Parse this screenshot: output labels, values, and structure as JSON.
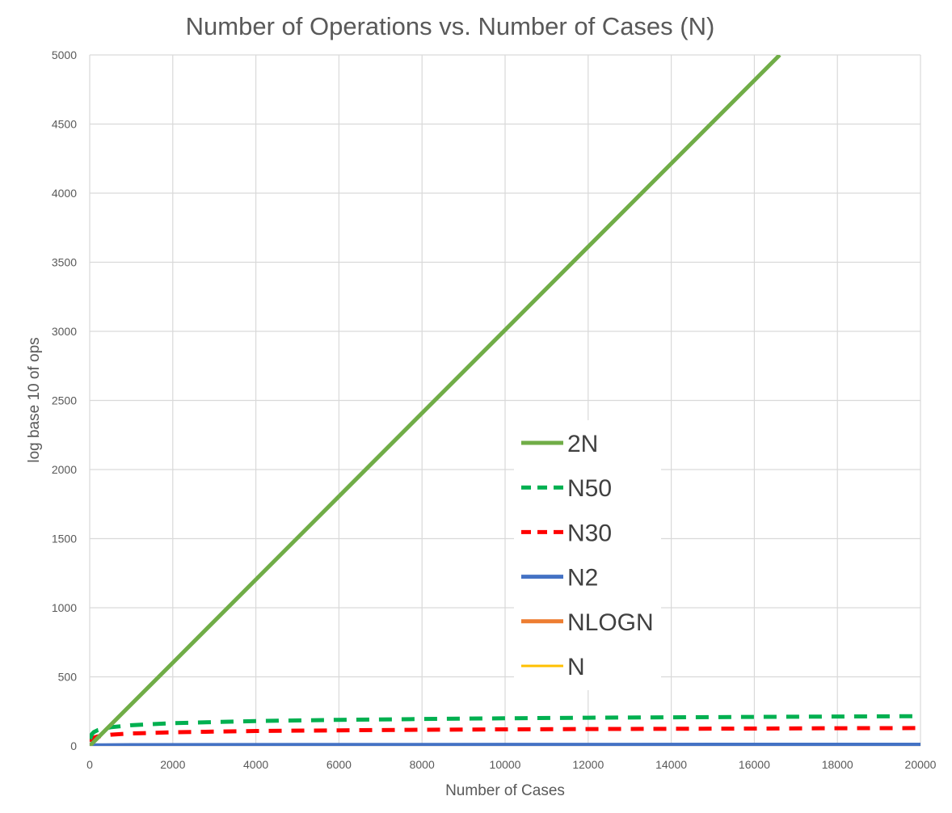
{
  "chart_data": {
    "type": "line",
    "title": "Number of Operations vs. Number of Cases (N)",
    "xlabel": "Number of Cases",
    "ylabel": "log base 10 of ops",
    "xlim": [
      0,
      20000
    ],
    "ylim": [
      0,
      5000
    ],
    "x_ticks": [
      "0",
      "2000",
      "4000",
      "6000",
      "8000",
      "10000",
      "12000",
      "14000",
      "16000",
      "18000",
      "20000"
    ],
    "y_ticks": [
      "0",
      "500",
      "1000",
      "1500",
      "2000",
      "2500",
      "3000",
      "3500",
      "4000",
      "4500",
      "5000"
    ],
    "grid": true,
    "legend_position": "inside-center-right",
    "series": [
      {
        "name": "2N",
        "color": "#70ad47",
        "dash": "solid",
        "x": [
          0,
          100,
          200,
          500,
          1000,
          2000,
          4000,
          6000,
          8000,
          10000,
          12000,
          14000,
          16000,
          16610
        ],
        "values": [
          0.3,
          30,
          60,
          151,
          301,
          602,
          1204,
          1806,
          2408,
          3010,
          3612,
          4214,
          4816,
          5000
        ]
      },
      {
        "name": "N50",
        "color": "#00b050",
        "dash": "dashed",
        "x": [
          10,
          50,
          100,
          200,
          500,
          1000,
          2000,
          4000,
          6000,
          8000,
          10000,
          12000,
          14000,
          16000,
          18000,
          20000
        ],
        "values": [
          50,
          85,
          100,
          115,
          135,
          150,
          165,
          180,
          189,
          195,
          200,
          204,
          207,
          210,
          213,
          215
        ]
      },
      {
        "name": "N30",
        "color": "#ff0000",
        "dash": "dashed",
        "x": [
          10,
          50,
          100,
          200,
          500,
          1000,
          2000,
          4000,
          6000,
          8000,
          10000,
          12000,
          14000,
          16000,
          18000,
          20000
        ],
        "values": [
          30,
          51,
          60,
          69,
          81,
          90,
          99,
          108,
          113,
          117,
          120,
          122,
          124,
          126,
          128,
          129
        ]
      },
      {
        "name": "N2",
        "color": "#4472c4",
        "dash": "solid",
        "x": [
          10,
          100,
          1000,
          10000,
          20000
        ],
        "values": [
          2,
          4,
          6,
          8,
          8.6
        ]
      },
      {
        "name": "NLOGN",
        "color": "#ed7d31",
        "dash": "solid",
        "x": [
          10,
          100,
          1000,
          10000,
          20000
        ],
        "values": [
          1,
          2.3,
          3.5,
          4.6,
          4.9
        ]
      },
      {
        "name": "N",
        "color": "#ffc000",
        "dash": "solid",
        "x": [
          10,
          100,
          1000,
          10000,
          20000
        ],
        "values": [
          1,
          2,
          3,
          4,
          4.3
        ]
      }
    ]
  }
}
